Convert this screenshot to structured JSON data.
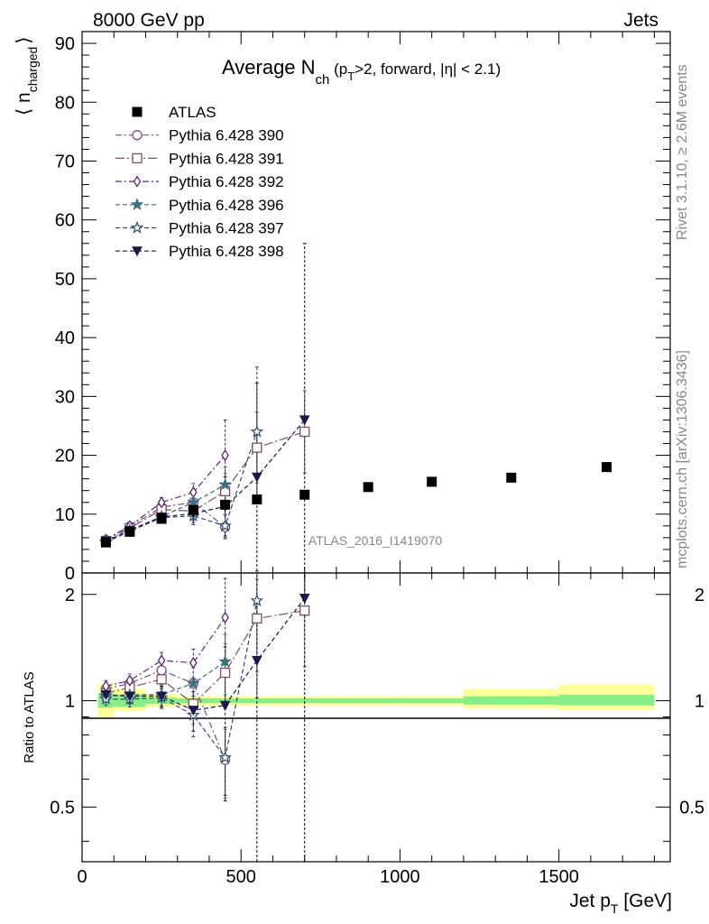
{
  "header": {
    "left": "8000 GeV pp",
    "right": "Jets"
  },
  "side_labels": {
    "rivet": "Rivet 3.1.10, ≥ 2.6M events",
    "mcplots": "mcplots.cern.ch [arXiv:1306.3436]"
  },
  "watermark": "ATLAS_2016_I1419070",
  "chart_data": [
    {
      "type": "scatter",
      "title_main": "Average N",
      "title_sub": "ch",
      "title_rest_1": " (p",
      "title_rest_sub": "T",
      "title_rest_2": ">2, forward, |η| < 2.1)",
      "ylabel_main": "⟨ n",
      "ylabel_sub": "charged",
      "ylabel_close": "⟩",
      "xlim": [
        0,
        1850
      ],
      "ylim": [
        0,
        92
      ],
      "yticks": [
        0,
        10,
        20,
        30,
        40,
        50,
        60,
        70,
        80,
        90
      ],
      "legend_position": "top-left",
      "reference": {
        "name": "ATLAS",
        "x": [
          75,
          150,
          250,
          350,
          450,
          550,
          700,
          900,
          1100,
          1350,
          1650
        ],
        "y": [
          5.2,
          7.0,
          9.2,
          10.7,
          11.6,
          12.5,
          13.3,
          14.6,
          15.5,
          16.2,
          18.0
        ]
      },
      "series": [
        {
          "name": "Pythia 6.428 390",
          "color": "#7f4f7f",
          "marker": "circle-open",
          "dash": "dashdot",
          "x": [
            75,
            150,
            250,
            350,
            450
          ],
          "y": [
            5.6,
            7.9,
            11.2,
            12.0,
            7.8
          ],
          "err": [
            0.3,
            0.4,
            0.8,
            1.5,
            2.0
          ]
        },
        {
          "name": "Pythia 6.428 391",
          "color": "#7f4f5f",
          "marker": "square-open",
          "dash": "longdashdot",
          "x": [
            75,
            150,
            250,
            350,
            450,
            550,
            700
          ],
          "y": [
            5.4,
            7.6,
            10.8,
            10.5,
            13.9,
            21.3,
            24.0
          ],
          "err": [
            0.3,
            0.4,
            0.8,
            1.5,
            3.0,
            6.0,
            7.0
          ]
        },
        {
          "name": "Pythia 6.428 392",
          "color": "#5a2a7a",
          "marker": "diamond-open",
          "dash": "dashdot",
          "x": [
            75,
            150,
            250,
            350,
            450
          ],
          "y": [
            5.7,
            8.0,
            12.0,
            13.7,
            20.0
          ],
          "err": [
            0.3,
            0.4,
            0.8,
            1.5,
            6.0
          ]
        },
        {
          "name": "Pythia 6.428 396",
          "color": "#3f6f7f",
          "marker": "star-filled",
          "dash": "dashed",
          "x": [
            75,
            150,
            250,
            350,
            450
          ],
          "y": [
            5.3,
            7.3,
            9.6,
            12.0,
            15.0
          ],
          "err": [
            0.3,
            0.4,
            0.8,
            1.5,
            3.0
          ]
        },
        {
          "name": "Pythia 6.428 397",
          "color": "#2f4f6f",
          "marker": "star-open",
          "dash": "dashed",
          "x": [
            75,
            150,
            250,
            350,
            450,
            550
          ],
          "y": [
            5.2,
            7.1,
            9.4,
            9.7,
            8.0,
            24.0
          ],
          "err": [
            0.3,
            0.4,
            0.8,
            1.5,
            2.0,
            11.0
          ]
        },
        {
          "name": "Pythia 6.428 398",
          "color": "#1a1a4a",
          "marker": "triangle-down-filled",
          "dash": "dashed",
          "x": [
            75,
            150,
            250,
            350,
            450,
            550,
            700
          ],
          "y": [
            5.4,
            7.2,
            9.5,
            10.1,
            11.3,
            16.3,
            26.0
          ],
          "err": [
            0.3,
            0.4,
            0.8,
            1.5,
            5.0,
            16.0,
            30.0
          ]
        }
      ]
    },
    {
      "type": "scatter",
      "ylabel": "Ratio to ATLAS",
      "xlabel_main": "Jet p",
      "xlabel_sub": "T",
      "xlabel_unit": " [GeV]",
      "xlim": [
        0,
        1850
      ],
      "ylim": [
        0.35,
        2.3
      ],
      "yscale": "log",
      "yticks": [
        0.5,
        1,
        2
      ],
      "xticks": [
        0,
        500,
        1000,
        1500
      ],
      "bands": [
        {
          "x0": 50,
          "x1": 100,
          "stat": [
            0.955,
            1.05
          ],
          "total": [
            0.9,
            1.12
          ]
        },
        {
          "x0": 100,
          "x1": 200,
          "stat": [
            0.96,
            1.04
          ],
          "total": [
            0.935,
            1.08
          ]
        },
        {
          "x0": 200,
          "x1": 300,
          "stat": [
            0.98,
            1.02
          ],
          "total": [
            0.96,
            1.045
          ]
        },
        {
          "x0": 300,
          "x1": 400,
          "stat": [
            0.985,
            1.015
          ],
          "total": [
            0.97,
            1.03
          ]
        },
        {
          "x0": 400,
          "x1": 500,
          "stat": [
            0.985,
            1.015
          ],
          "total": [
            0.97,
            1.03
          ]
        },
        {
          "x0": 500,
          "x1": 600,
          "stat": [
            0.985,
            1.015
          ],
          "total": [
            0.97,
            1.03
          ]
        },
        {
          "x0": 600,
          "x1": 800,
          "stat": [
            0.985,
            1.015
          ],
          "total": [
            0.97,
            1.03
          ]
        },
        {
          "x0": 800,
          "x1": 1000,
          "stat": [
            0.985,
            1.015
          ],
          "total": [
            0.97,
            1.03
          ]
        },
        {
          "x0": 1000,
          "x1": 1200,
          "stat": [
            0.985,
            1.015
          ],
          "total": [
            0.97,
            1.03
          ]
        },
        {
          "x0": 1200,
          "x1": 1500,
          "stat": [
            0.975,
            1.03
          ],
          "total": [
            0.95,
            1.08
          ]
        },
        {
          "x0": 1500,
          "x1": 1800,
          "stat": [
            0.97,
            1.04
          ],
          "total": [
            0.94,
            1.11
          ]
        }
      ],
      "series": [
        {
          "name": "Pythia 6.428 390",
          "x": [
            75,
            150,
            250,
            350,
            450
          ],
          "y": [
            1.08,
            1.12,
            1.22,
            1.12,
            0.68
          ],
          "err": [
            0.04,
            0.05,
            0.07,
            0.12,
            0.15
          ]
        },
        {
          "name": "Pythia 6.428 391",
          "x": [
            75,
            150,
            250,
            350,
            450,
            550,
            700
          ],
          "y": [
            1.05,
            1.09,
            1.15,
            0.98,
            1.2,
            1.71,
            1.8
          ],
          "err": [
            0.04,
            0.05,
            0.07,
            0.12,
            0.25,
            0.5,
            0.55
          ]
        },
        {
          "name": "Pythia 6.428 392",
          "x": [
            75,
            150,
            250,
            350,
            450
          ],
          "y": [
            1.1,
            1.14,
            1.3,
            1.28,
            1.72
          ],
          "err": [
            0.04,
            0.05,
            0.07,
            0.12,
            0.5
          ]
        },
        {
          "name": "Pythia 6.428 396",
          "x": [
            75,
            150,
            250,
            350,
            450
          ],
          "y": [
            1.03,
            1.04,
            1.04,
            1.12,
            1.29
          ],
          "err": [
            0.04,
            0.05,
            0.07,
            0.12,
            0.25
          ]
        },
        {
          "name": "Pythia 6.428 397",
          "x": [
            75,
            150,
            250,
            350,
            450,
            550
          ],
          "y": [
            1.01,
            1.01,
            1.02,
            0.91,
            0.69,
            1.92
          ],
          "err": [
            0.04,
            0.05,
            0.07,
            0.12,
            0.15,
            0.9
          ]
        },
        {
          "name": "Pythia 6.428 398",
          "x": [
            75,
            150,
            250,
            350,
            450,
            550,
            700
          ],
          "y": [
            1.04,
            1.03,
            1.03,
            0.94,
            0.97,
            1.3,
            1.95
          ],
          "err": [
            0.04,
            0.05,
            0.07,
            0.12,
            0.45,
            1.3,
            2.3
          ]
        }
      ]
    }
  ]
}
